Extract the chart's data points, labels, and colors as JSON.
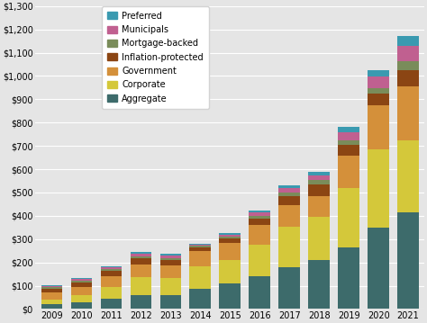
{
  "years": [
    2009,
    2010,
    2011,
    2012,
    2013,
    2014,
    2015,
    2016,
    2017,
    2018,
    2019,
    2020,
    2021
  ],
  "segments": {
    "Aggregate": [
      20,
      30,
      45,
      60,
      60,
      88,
      110,
      140,
      180,
      210,
      265,
      350,
      415
    ],
    "Corporate": [
      22,
      30,
      50,
      75,
      72,
      95,
      100,
      135,
      175,
      185,
      255,
      335,
      310
    ],
    "Government": [
      28,
      33,
      45,
      55,
      55,
      65,
      75,
      85,
      90,
      90,
      140,
      190,
      230
    ],
    "Inflation-protected": [
      18,
      22,
      22,
      28,
      23,
      18,
      18,
      27,
      38,
      50,
      45,
      50,
      70
    ],
    "Mortgage-backed": [
      5,
      5,
      8,
      8,
      8,
      5,
      8,
      12,
      18,
      18,
      18,
      22,
      38
    ],
    "Municipals": [
      5,
      8,
      8,
      10,
      10,
      5,
      9,
      14,
      18,
      22,
      35,
      50,
      65
    ],
    "Preferred": [
      4,
      5,
      5,
      8,
      8,
      5,
      8,
      9,
      13,
      13,
      22,
      28,
      45
    ]
  },
  "colors": {
    "Aggregate": "#3d6b6b",
    "Corporate": "#d4c83a",
    "Government": "#d4903a",
    "Inflation-protected": "#8b4513",
    "Mortgage-backed": "#7a8c5a",
    "Municipals": "#c06090",
    "Preferred": "#3a9ab0"
  },
  "ylim": [
    0,
    1300
  ],
  "yticks": [
    0,
    100,
    200,
    300,
    400,
    500,
    600,
    700,
    800,
    900,
    1000,
    1100,
    1200,
    1300
  ],
  "ytick_labels": [
    "$0",
    "$100",
    "$200",
    "$300",
    "$400",
    "$500",
    "$600",
    "$700",
    "$800",
    "$900",
    "$1,000",
    "$1,100",
    "$1,200",
    "$1,300"
  ],
  "background_color": "#e5e5e5",
  "grid_color": "#ffffff",
  "bar_width": 0.72,
  "legend_order": [
    "Preferred",
    "Municipals",
    "Mortgage-backed",
    "Inflation-protected",
    "Government",
    "Corporate",
    "Aggregate"
  ],
  "segment_order": [
    "Aggregate",
    "Corporate",
    "Government",
    "Inflation-protected",
    "Mortgage-backed",
    "Municipals",
    "Preferred"
  ]
}
